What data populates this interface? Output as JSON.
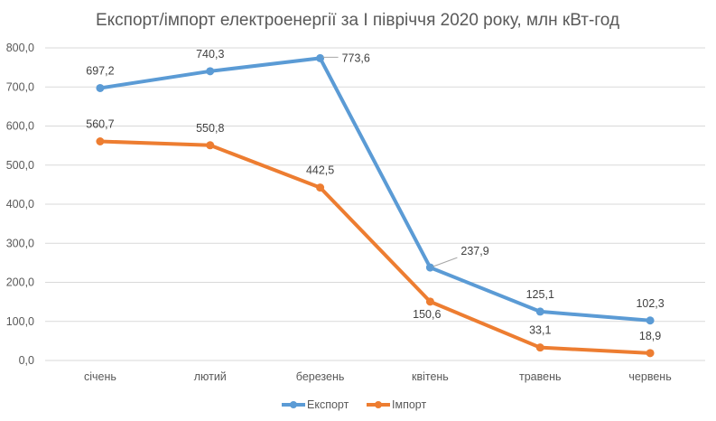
{
  "chart_data": {
    "type": "line",
    "title": "Експорт/імпорт електроенергії за І півріччя 2020 року, млн кВт-год",
    "xlabel": "",
    "ylabel": "",
    "categories": [
      "січень",
      "лютий",
      "березень",
      "квітень",
      "травень",
      "червень"
    ],
    "ylim": [
      0,
      800
    ],
    "yticks": [
      "0,0",
      "100,0",
      "200,0",
      "300,0",
      "400,0",
      "500,0",
      "600,0",
      "700,0",
      "800,0"
    ],
    "grid": true,
    "legend_position": "bottom",
    "series": [
      {
        "name": "Експорт",
        "color": "#5B9BD5",
        "values": [
          697.2,
          740.3,
          773.6,
          237.9,
          125.1,
          102.3
        ],
        "labels": [
          "697,2",
          "740,3",
          "773,6",
          "237,9",
          "125,1",
          "102,3"
        ]
      },
      {
        "name": "Імпорт",
        "color": "#ED7D31",
        "values": [
          560.7,
          550.8,
          442.5,
          150.6,
          33.1,
          18.9
        ],
        "labels": [
          "560,7",
          "550,8",
          "442,5",
          "150,6",
          "33,1",
          "18,9"
        ]
      }
    ]
  }
}
